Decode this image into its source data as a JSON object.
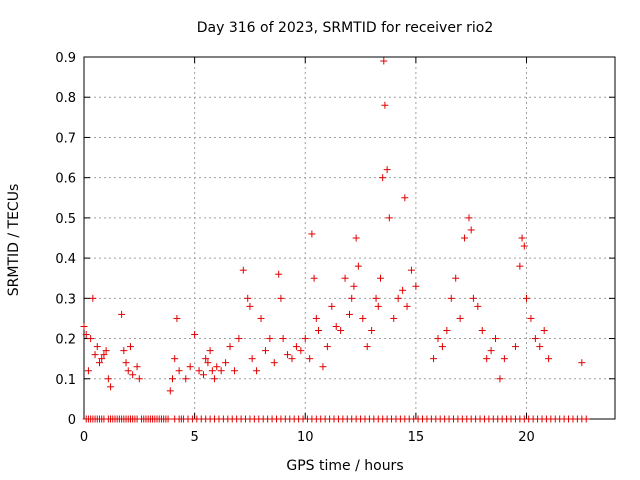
{
  "chart_data": {
    "type": "scatter",
    "title": "Day 316 of 2023, SRMTID for receiver rio2",
    "xlabel": "GPS time / hours",
    "ylabel": "SRMTID / TECUs",
    "xlim": [
      0,
      24
    ],
    "ylim": [
      0,
      0.9
    ],
    "x_ticks": [
      0,
      5,
      10,
      15,
      20
    ],
    "y_ticks": [
      0,
      0.1,
      0.2,
      0.3,
      0.4,
      0.5,
      0.6,
      0.7,
      0.8,
      0.9
    ],
    "x_tick_labels": [
      "0",
      "5",
      "10",
      "15",
      "20"
    ],
    "y_tick_labels": [
      "0",
      "0.1",
      "0.2",
      "0.3",
      "0.4",
      "0.5",
      "0.6",
      "0.7",
      "0.8",
      "0.9"
    ],
    "grid": true,
    "marker": "+",
    "color": "#e00000",
    "series": [
      {
        "name": "SRMTID rio2",
        "x": [
          0.0,
          0.1,
          0.2,
          0.3,
          0.4,
          0.5,
          0.6,
          0.7,
          0.8,
          0.9,
          1.0,
          1.1,
          1.2,
          1.7,
          1.8,
          1.9,
          2.0,
          2.1,
          2.2,
          2.4,
          2.5,
          3.9,
          4.0,
          4.1,
          4.2,
          4.3,
          4.6,
          4.8,
          5.0,
          5.2,
          5.4,
          5.5,
          5.6,
          5.7,
          5.8,
          5.9,
          6.0,
          6.2,
          6.4,
          6.6,
          6.8,
          7.0,
          7.2,
          7.4,
          7.5,
          7.6,
          7.8,
          8.0,
          8.2,
          8.4,
          8.6,
          8.8,
          8.9,
          9.0,
          9.2,
          9.4,
          9.6,
          9.8,
          10.0,
          10.2,
          10.3,
          10.4,
          10.5,
          10.6,
          10.8,
          11.0,
          11.2,
          11.4,
          11.6,
          11.8,
          12.0,
          12.1,
          12.2,
          12.3,
          12.4,
          12.6,
          12.8,
          13.0,
          13.2,
          13.3,
          13.4,
          13.5,
          13.55,
          13.6,
          13.7,
          13.8,
          14.0,
          14.2,
          14.4,
          14.5,
          14.6,
          14.8,
          15.0,
          15.8,
          16.0,
          16.2,
          16.4,
          16.6,
          16.8,
          17.0,
          17.2,
          17.4,
          17.5,
          17.6,
          17.8,
          18.0,
          18.2,
          18.4,
          18.6,
          18.8,
          19.0,
          19.5,
          19.7,
          19.8,
          19.9,
          20.0,
          20.2,
          20.4,
          20.6,
          20.8,
          21.0,
          22.5
        ],
        "y": [
          0.23,
          0.21,
          0.12,
          0.2,
          0.3,
          0.16,
          0.18,
          0.14,
          0.15,
          0.16,
          0.17,
          0.1,
          0.08,
          0.26,
          0.17,
          0.14,
          0.12,
          0.18,
          0.11,
          0.13,
          0.1,
          0.07,
          0.1,
          0.15,
          0.25,
          0.12,
          0.1,
          0.13,
          0.21,
          0.12,
          0.11,
          0.15,
          0.14,
          0.17,
          0.12,
          0.1,
          0.13,
          0.12,
          0.14,
          0.18,
          0.12,
          0.2,
          0.37,
          0.3,
          0.28,
          0.15,
          0.12,
          0.25,
          0.17,
          0.2,
          0.14,
          0.36,
          0.3,
          0.2,
          0.16,
          0.15,
          0.18,
          0.17,
          0.2,
          0.15,
          0.46,
          0.35,
          0.25,
          0.22,
          0.13,
          0.18,
          0.28,
          0.23,
          0.22,
          0.35,
          0.26,
          0.3,
          0.33,
          0.45,
          0.38,
          0.25,
          0.18,
          0.22,
          0.3,
          0.28,
          0.35,
          0.6,
          0.89,
          0.78,
          0.62,
          0.5,
          0.25,
          0.3,
          0.32,
          0.55,
          0.28,
          0.37,
          0.33,
          0.15,
          0.2,
          0.18,
          0.22,
          0.3,
          0.35,
          0.25,
          0.45,
          0.5,
          0.47,
          0.3,
          0.28,
          0.22,
          0.15,
          0.17,
          0.2,
          0.1,
          0.15,
          0.18,
          0.38,
          0.45,
          0.43,
          0.3,
          0.25,
          0.2,
          0.18,
          0.22,
          0.15,
          0.14
        ],
        "zero_x": [
          0.1,
          0.2,
          0.3,
          0.4,
          0.5,
          0.6,
          0.7,
          0.8,
          0.9,
          1.1,
          1.2,
          1.3,
          1.4,
          1.5,
          1.6,
          1.7,
          1.8,
          1.9,
          2.0,
          2.1,
          2.2,
          2.3,
          2.4,
          2.6,
          2.7,
          2.8,
          2.9,
          3.0,
          3.1,
          3.2,
          3.3,
          3.4,
          3.5,
          3.6,
          3.7,
          3.8,
          4.1,
          4.3,
          4.4,
          4.5,
          4.7,
          4.9,
          5.1,
          5.3,
          5.5,
          5.7,
          5.9,
          6.1,
          6.3,
          6.5,
          6.7,
          6.9,
          7.1,
          7.3,
          7.5,
          7.7,
          7.9,
          8.1,
          8.3,
          8.5,
          8.7,
          8.9,
          9.1,
          9.3,
          9.5,
          9.7,
          9.9,
          10.1,
          10.3,
          10.5,
          10.7,
          10.9,
          11.1,
          11.3,
          11.5,
          11.7,
          11.9,
          12.1,
          12.3,
          12.5,
          12.7,
          12.9,
          13.1,
          13.3,
          13.5,
          13.7,
          13.9,
          14.1,
          14.3,
          14.5,
          14.7,
          14.9,
          15.1,
          15.3,
          15.5,
          15.7,
          15.9,
          16.1,
          16.3,
          16.5,
          16.7,
          16.9,
          17.1,
          17.3,
          17.5,
          17.7,
          17.9,
          18.1,
          18.3,
          18.5,
          18.7,
          18.9,
          19.1,
          19.3,
          19.5,
          19.7,
          19.9,
          20.1,
          20.3,
          20.5,
          20.7,
          20.9,
          21.1,
          21.3,
          21.5,
          21.7,
          21.9,
          22.1,
          22.3,
          22.5,
          22.7
        ]
      }
    ]
  }
}
